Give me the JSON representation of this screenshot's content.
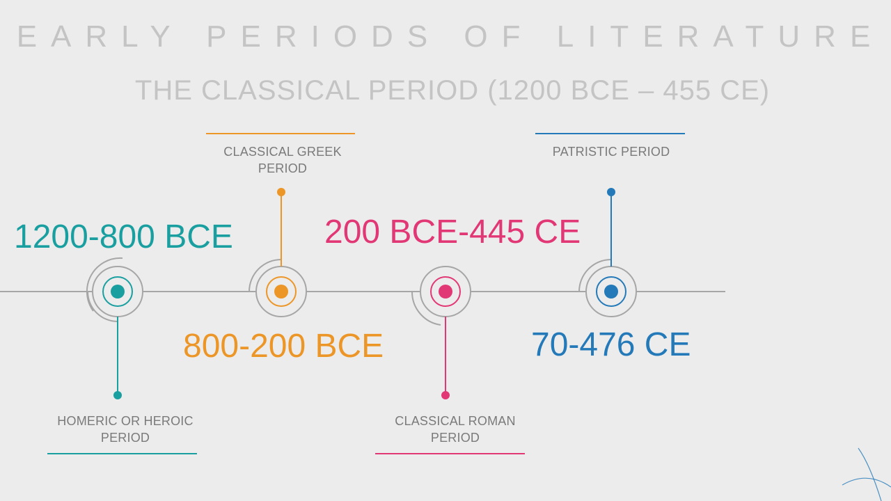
{
  "title": "EARLY PERIODS OF LITERATURE",
  "subtitle": "THE CLASSICAL PERIOD (1200 BCE – 455 CE)",
  "colors": {
    "teal": "#1a9fa0",
    "orange": "#ec9628",
    "pink": "#e23775",
    "blue": "#2479b8",
    "line": "#a6a6a6",
    "text": "#7a7a7a",
    "title": "#c4c4c4"
  },
  "periods": [
    {
      "dates": "1200-800 BCE",
      "label": "HOMERIC OR HEROIC PERIOD",
      "color": "#1a9fa0"
    },
    {
      "dates": "800-200 BCE",
      "label": "CLASSICAL GREEK PERIOD",
      "color": "#ec9628"
    },
    {
      "dates": "200 BCE-445 CE",
      "label": "CLASSICAL ROMAN PERIOD",
      "color": "#e23775"
    },
    {
      "dates": "70-476 CE",
      "label": "PATRISTIC PERIOD",
      "color": "#2479b8"
    }
  ]
}
